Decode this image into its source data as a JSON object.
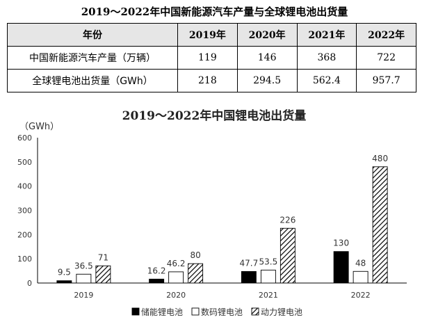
{
  "table": {
    "title": "2019～2022年中国新能源汽车产量与全球锂电池出货量",
    "header": [
      "年份",
      "2019年",
      "2020年",
      "2021年",
      "2022年"
    ],
    "rows": [
      {
        "label": "中国新能源汽车产量（万辆）",
        "values": [
          "119",
          "146",
          "368",
          "722"
        ]
      },
      {
        "label": "全球锂电池出货量（GWh）",
        "values": [
          "218",
          "294.5",
          "562.4",
          "957.7"
        ]
      }
    ]
  },
  "chart_data": {
    "type": "bar",
    "title": "2019～2022年中国锂电池出货量",
    "ylabel": "（GWh）",
    "xlabel": "",
    "categories": [
      "2019",
      "2020",
      "2021",
      "2022"
    ],
    "ylim": [
      0,
      600
    ],
    "yticks": [
      0,
      100,
      200,
      300,
      400,
      500,
      600
    ],
    "series": [
      {
        "name": "储能锂电池",
        "values": [
          9.5,
          16.2,
          47.7,
          130
        ],
        "labels": [
          "9.5",
          "16.2",
          "47.7",
          "130"
        ],
        "fill": "#000000"
      },
      {
        "name": "数码锂电池",
        "values": [
          36.5,
          46.2,
          53.5,
          48
        ],
        "labels": [
          "36.5",
          "46.2",
          "53.5",
          "48"
        ],
        "fill": "#ffffff"
      },
      {
        "name": "动力锂电池",
        "values": [
          71,
          80,
          226,
          480
        ],
        "labels": [
          "71",
          "80",
          "226",
          "480"
        ],
        "fill": "hatch"
      }
    ],
    "grid": false,
    "legend_position": "bottom"
  }
}
